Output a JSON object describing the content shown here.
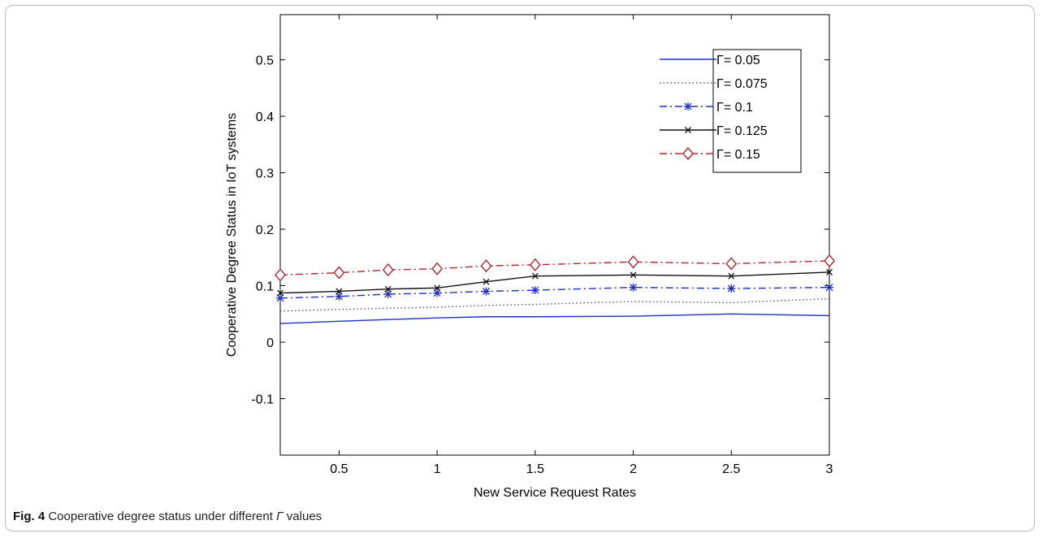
{
  "figure": {
    "label": "Fig. 4",
    "caption_pre": " Cooperative degree status under different ",
    "caption_symbol": "Γ",
    "caption_post": " values"
  },
  "chart_data": {
    "type": "line",
    "title": "",
    "xlabel": "New Service Request Rates",
    "ylabel": "Cooperative Degree Status in IoT systems",
    "xlim": [
      0.2,
      3
    ],
    "ylim": [
      -0.2,
      0.58
    ],
    "xticks": [
      0.5,
      1,
      1.5,
      2,
      2.5,
      3
    ],
    "xtick_labels": [
      "0.5",
      "1",
      "1.5",
      "2",
      "2.5",
      "3"
    ],
    "yticks": [
      -0.1,
      0,
      0.1,
      0.2,
      0.3,
      0.4,
      0.5
    ],
    "ytick_labels": [
      "-0.1",
      "0",
      "0.1",
      "0.2",
      "0.3",
      "0.4",
      "0.5"
    ],
    "grid": false,
    "legend_position": "top-right",
    "x": [
      0.2,
      0.5,
      0.75,
      1,
      1.25,
      1.5,
      2,
      2.5,
      3
    ],
    "series": [
      {
        "name": "Γ= 0.05",
        "color": "#1f2fbf",
        "dash": "solid",
        "marker": "none",
        "values": [
          0.033,
          0.037,
          0.04,
          0.043,
          0.045,
          0.045,
          0.046,
          0.05,
          0.047
        ]
      },
      {
        "name": "Γ= 0.075",
        "color": "#555555",
        "dash": "dotted",
        "marker": "none",
        "values": [
          0.055,
          0.058,
          0.06,
          0.062,
          0.065,
          0.067,
          0.072,
          0.07,
          0.077
        ]
      },
      {
        "name": "Γ= 0.1",
        "color": "#1f2fbf",
        "dash": "dashdot",
        "marker": "asterisk",
        "values": [
          0.078,
          0.081,
          0.085,
          0.087,
          0.09,
          0.092,
          0.097,
          0.095,
          0.097
        ]
      },
      {
        "name": "Γ= 0.125",
        "color": "#111111",
        "dash": "solid",
        "marker": "x",
        "values": [
          0.087,
          0.09,
          0.094,
          0.096,
          0.107,
          0.117,
          0.119,
          0.117,
          0.124
        ]
      },
      {
        "name": "Γ= 0.15",
        "color": "#b3222f",
        "dash": "dashdot",
        "marker": "diamond",
        "values": [
          0.119,
          0.123,
          0.128,
          0.13,
          0.135,
          0.137,
          0.142,
          0.139,
          0.144
        ]
      }
    ]
  }
}
